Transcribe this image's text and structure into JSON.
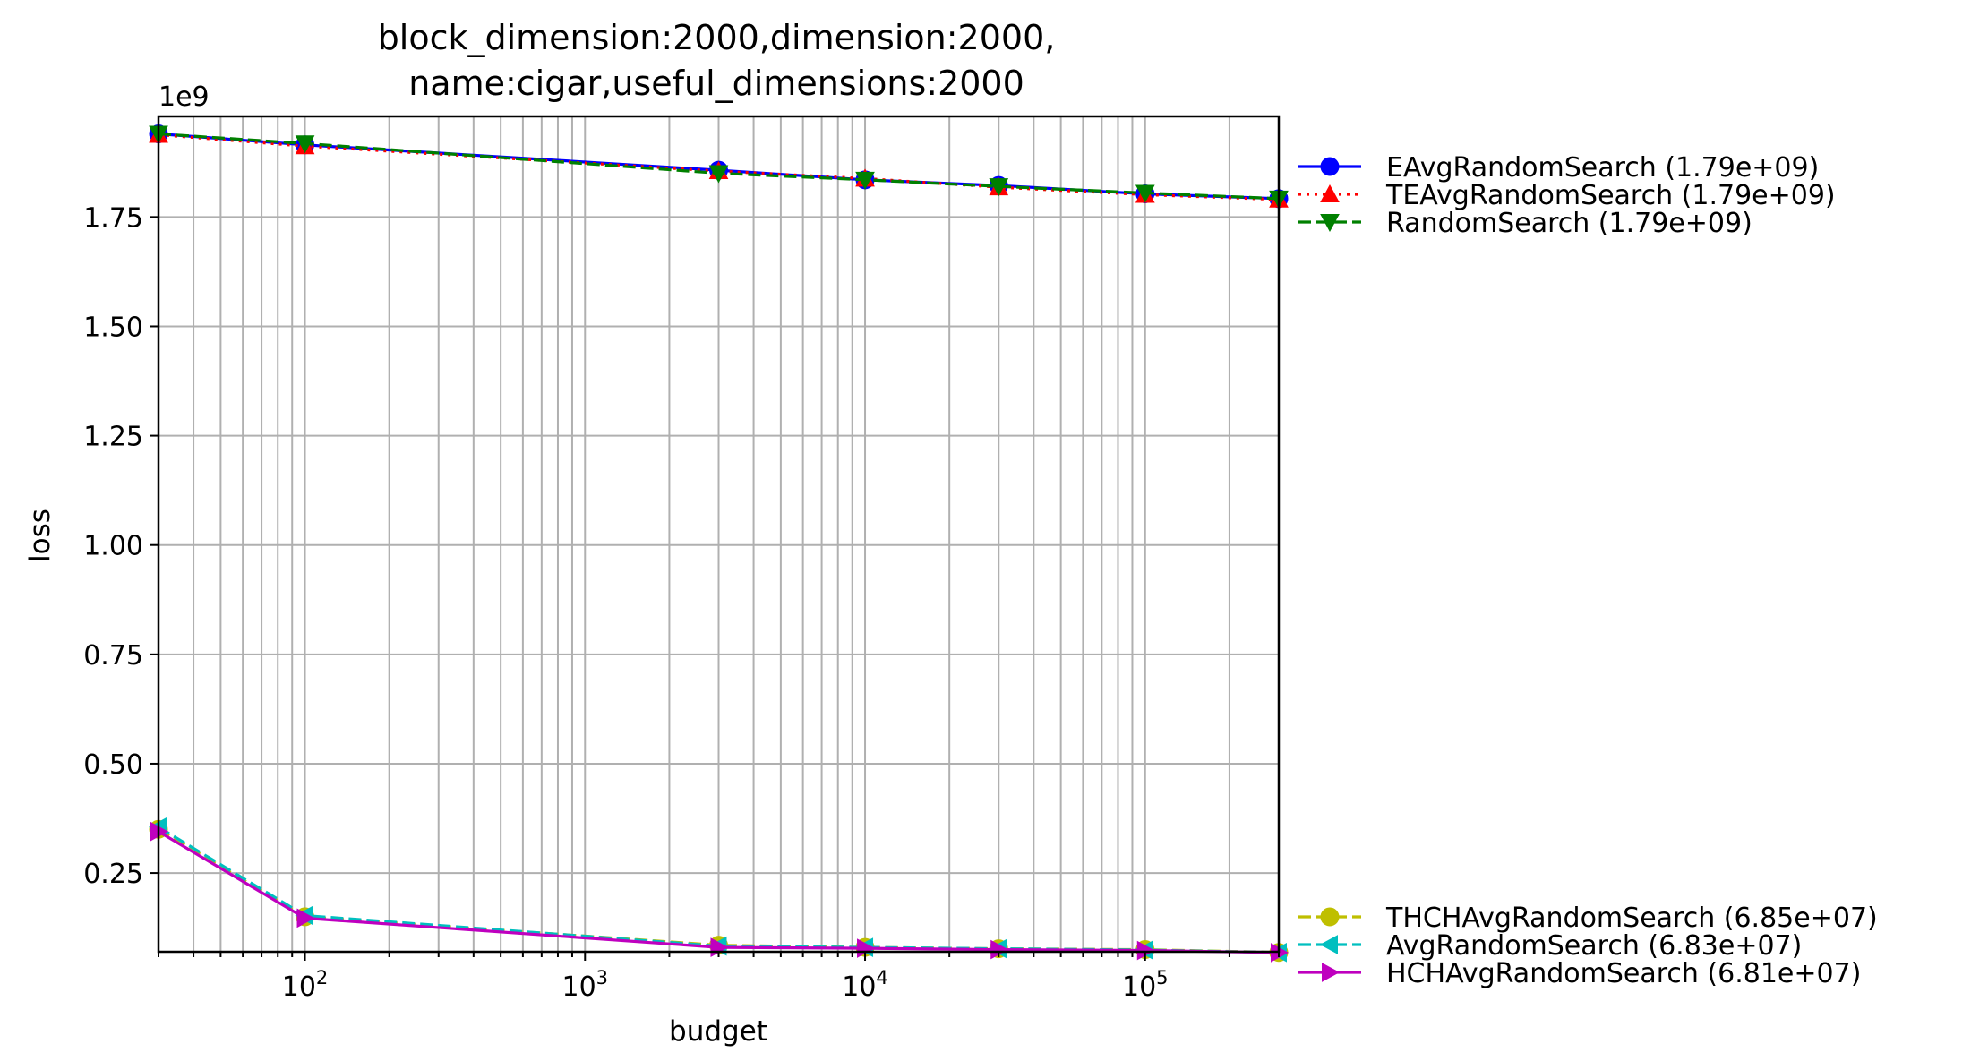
{
  "chart_data": {
    "type": "line",
    "title_line1": "block_dimension:2000,dimension:2000,",
    "title_line2": "name:cigar,useful_dimensions:2000",
    "xlabel": "budget",
    "ylabel": "loss",
    "y_multiplier": "1e9",
    "x_scale": "log",
    "xlim": [
      30,
      300000
    ],
    "ylim": [
      0.07,
      1.98
    ],
    "x_ticks": [
      {
        "value": 100,
        "base": "10",
        "exp": "2"
      },
      {
        "value": 1000,
        "base": "10",
        "exp": "3"
      },
      {
        "value": 10000,
        "base": "10",
        "exp": "4"
      },
      {
        "value": 100000,
        "base": "10",
        "exp": "5"
      }
    ],
    "y_ticks": [
      {
        "value": 0.25,
        "label": "0.25"
      },
      {
        "value": 0.5,
        "label": "0.50"
      },
      {
        "value": 0.75,
        "label": "0.75"
      },
      {
        "value": 1.0,
        "label": "1.00"
      },
      {
        "value": 1.25,
        "label": "1.25"
      },
      {
        "value": 1.5,
        "label": "1.50"
      },
      {
        "value": 1.75,
        "label": "1.75"
      }
    ],
    "grid": true,
    "legend_placement": "outside-right",
    "x": [
      30,
      100,
      3000,
      10000,
      30000,
      100000,
      300000
    ],
    "series": [
      {
        "name": "EAvgRandomSearch (1.79e+09)",
        "color": "#0000ff",
        "dash": "solid",
        "marker": "circle",
        "group": "top",
        "values": [
          1.94,
          1.915,
          1.857,
          1.835,
          1.822,
          1.803,
          1.792
        ]
      },
      {
        "name": "TEAvgRandomSearch (1.79e+09)",
        "color": "#ff0000",
        "dash": "dotted",
        "marker": "triangle-up",
        "group": "top",
        "values": [
          1.938,
          1.912,
          1.855,
          1.838,
          1.818,
          1.801,
          1.79
        ]
      },
      {
        "name": "RandomSearch (1.79e+09)",
        "color": "#008000",
        "dash": "dashed",
        "marker": "triangle-down",
        "group": "top",
        "values": [
          1.94,
          1.918,
          1.85,
          1.835,
          1.82,
          1.805,
          1.792
        ]
      },
      {
        "name": "THCHAvgRandomSearch (6.85e+07)",
        "color": "#bfbf00",
        "dash": "dashed",
        "marker": "circle",
        "group": "bottom",
        "values": [
          0.35,
          0.15,
          0.085,
          0.08,
          0.077,
          0.075,
          0.0685
        ]
      },
      {
        "name": "AvgRandomSearch (6.83e+07)",
        "color": "#00bfbf",
        "dash": "dashed",
        "marker": "triangle-left",
        "group": "bottom",
        "values": [
          0.355,
          0.153,
          0.083,
          0.08,
          0.077,
          0.074,
          0.0683
        ]
      },
      {
        "name": "HCHAvgRandomSearch (6.81e+07)",
        "color": "#bf00bf",
        "dash": "solid",
        "marker": "triangle-right",
        "group": "bottom",
        "values": [
          0.345,
          0.147,
          0.08,
          0.078,
          0.075,
          0.073,
          0.0681
        ]
      }
    ]
  }
}
